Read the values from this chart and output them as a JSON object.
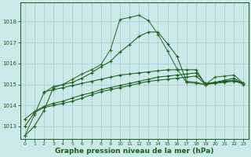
{
  "background_color": "#cce9e9",
  "grid_color": "#aacfcf",
  "line_color_dark": "#1a5c1a",
  "line_color_mid": "#2d6e2d",
  "xlabel": "Graphe pression niveau de la mer (hPa)",
  "xlabel_fontsize": 6.5,
  "xlim": [
    -0.5,
    23.5
  ],
  "ylim": [
    1012.4,
    1018.9
  ],
  "yticks": [
    1013,
    1014,
    1015,
    1016,
    1017,
    1018
  ],
  "xticks": [
    0,
    1,
    2,
    3,
    4,
    5,
    6,
    7,
    8,
    9,
    10,
    11,
    12,
    13,
    14,
    15,
    16,
    17,
    18,
    19,
    20,
    21,
    22,
    23
  ],
  "series_peak_x": [
    0,
    1,
    2,
    3,
    4,
    5,
    6,
    7,
    8,
    9,
    10,
    11,
    12,
    13,
    14,
    15,
    16,
    17,
    18,
    19,
    20,
    21,
    22,
    23
  ],
  "series_peak_y": [
    1012.55,
    1013.55,
    1014.6,
    1014.9,
    1015.0,
    1015.25,
    1015.5,
    1015.7,
    1015.95,
    1016.65,
    1018.1,
    1018.2,
    1018.3,
    1018.05,
    1017.4,
    1016.6,
    1015.75,
    1015.1,
    1015.05,
    1015.0,
    1015.35,
    1015.4,
    1015.45,
    1015.05
  ],
  "series_mid1_x": [
    0,
    1,
    2,
    3,
    4,
    5,
    6,
    7,
    8,
    9,
    10,
    11,
    12,
    13,
    14,
    15,
    16,
    17,
    18,
    19,
    20,
    21,
    22,
    23
  ],
  "series_mid1_y": [
    1012.55,
    1013.0,
    1013.75,
    1014.85,
    1015.0,
    1015.1,
    1015.3,
    1015.55,
    1015.85,
    1016.1,
    1016.55,
    1016.9,
    1017.3,
    1017.5,
    1017.5,
    1016.95,
    1016.35,
    1015.15,
    1015.1,
    1015.0,
    1015.1,
    1015.2,
    1015.3,
    1015.05
  ],
  "series_flat1_x": [
    0,
    1,
    2,
    3,
    4,
    5,
    6,
    7,
    8,
    9,
    10,
    11,
    12,
    13,
    14,
    15,
    16,
    17,
    18,
    19,
    20,
    21,
    22,
    23
  ],
  "series_flat1_y": [
    1013.0,
    1013.65,
    1013.9,
    1014.0,
    1014.1,
    1014.2,
    1014.35,
    1014.5,
    1014.65,
    1014.75,
    1014.85,
    1014.95,
    1015.05,
    1015.15,
    1015.2,
    1015.25,
    1015.3,
    1015.35,
    1015.4,
    1015.0,
    1015.05,
    1015.1,
    1015.15,
    1015.05
  ],
  "series_flat2_x": [
    0,
    1,
    2,
    3,
    4,
    5,
    6,
    7,
    8,
    9,
    10,
    11,
    12,
    13,
    14,
    15,
    16,
    17,
    18,
    19,
    20,
    21,
    22,
    23
  ],
  "series_flat2_y": [
    1013.35,
    1013.7,
    1013.95,
    1014.1,
    1014.2,
    1014.35,
    1014.5,
    1014.6,
    1014.75,
    1014.85,
    1014.95,
    1015.05,
    1015.15,
    1015.25,
    1015.35,
    1015.4,
    1015.45,
    1015.5,
    1015.55,
    1015.05,
    1015.1,
    1015.15,
    1015.2,
    1015.0
  ],
  "series_flat3_x": [
    2,
    3,
    4,
    5,
    6,
    7,
    8,
    9,
    10,
    11,
    12,
    13,
    14,
    15,
    16,
    17,
    18,
    19,
    20,
    21,
    22,
    23
  ],
  "series_flat3_y": [
    1014.65,
    1014.75,
    1014.85,
    1014.95,
    1015.05,
    1015.15,
    1015.25,
    1015.35,
    1015.45,
    1015.5,
    1015.55,
    1015.6,
    1015.65,
    1015.7,
    1015.7,
    1015.7,
    1015.7,
    1015.0,
    1015.1,
    1015.15,
    1015.2,
    1015.05
  ]
}
